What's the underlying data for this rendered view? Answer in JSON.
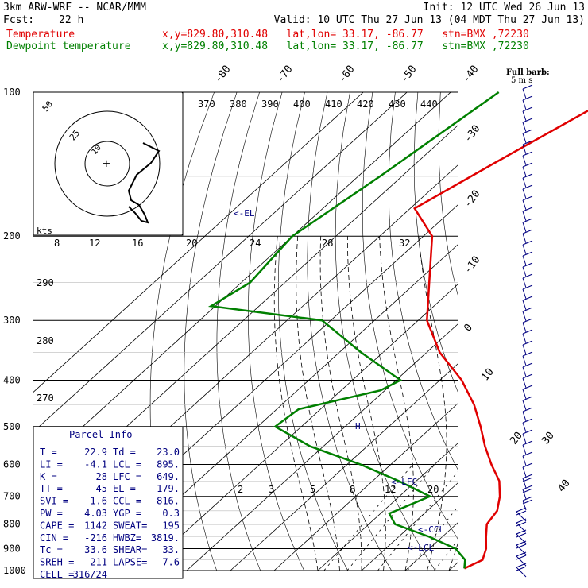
{
  "header": {
    "model": "3km ARW-WRF -- NCAR/MMM",
    "init": "Init: 12 UTC Wed 26 Jun 13",
    "fcst_label": "Fcst:",
    "fcst_value": "22 h",
    "valid": "Valid: 10 UTC Thu 27 Jun 13 (04 MDT Thu 27 Jun 13)",
    "temp_label": "Temperature",
    "dew_label": "Dewpoint temperature",
    "location": "x,y=829.80,310.48   lat,lon= 33.17, -86.77   stn=BMX ,72230"
  },
  "parcel_info": {
    "title": "Parcel Info",
    "rows": [
      [
        "T   =",
        "22.9",
        "Td =",
        "23.0"
      ],
      [
        "LI  =",
        "-4.1",
        "LCL =",
        "895."
      ],
      [
        "K   =",
        "28",
        "LFC =",
        "649."
      ],
      [
        "TT  =",
        "45",
        "EL  =",
        "179."
      ],
      [
        "SVI =",
        "1.6",
        "CCL =",
        "816."
      ],
      [
        "PW  =",
        "4.03",
        "YGP =",
        "0.3"
      ],
      [
        "CAPE =",
        "1142",
        "SWEAT=",
        "195"
      ],
      [
        "CIN  =",
        "-216",
        "HWBZ=",
        "3819."
      ],
      [
        "Tc   =",
        "33.6",
        "SHEAR=",
        "33."
      ],
      [
        "SREH =",
        "211",
        "LAPSE=",
        "7.6"
      ],
      [
        "CELL =",
        "316/24",
        "",
        ""
      ]
    ]
  },
  "hodograph": {
    "units": "kts",
    "rings": [
      "50",
      "25",
      "10"
    ]
  },
  "barb_legend": {
    "line1": "Full barb:",
    "line2": "5 m s"
  },
  "annotations": {
    "el": "<-EL",
    "lfc": "<-LFC",
    "ccl": "<-CCL",
    "lcl": "<-LCL",
    "h": "H"
  },
  "colors": {
    "temperature": "#e00000",
    "dewpoint": "#008000",
    "parcel_text": "#000080",
    "wind": "#000080"
  },
  "chart_data": {
    "type": "line",
    "pressure_levels": [
      100,
      200,
      300,
      400,
      500,
      600,
      700,
      800,
      900,
      1000
    ],
    "isotherm_labels": [
      "-80",
      "-70",
      "-60",
      "-50",
      "-40",
      "-30",
      "-20",
      "-10",
      "0",
      "10",
      "20",
      "30",
      "40"
    ],
    "theta_labels": [
      "370",
      "380",
      "390",
      "400",
      "410",
      "420",
      "430",
      "440"
    ],
    "theta_left_labels": [
      "290",
      "280",
      "270"
    ],
    "mixing_ratio_upper": [
      "8",
      "12",
      "16",
      "20",
      "24",
      "28",
      "32"
    ],
    "mixing_ratio_lower": [
      "2",
      "3",
      "5",
      "8",
      "12",
      "20"
    ],
    "series": [
      {
        "name": "Temperature",
        "points": [
          [
            100,
            -61
          ],
          [
            140,
            -72
          ],
          [
            175,
            -79
          ],
          [
            200,
            -68
          ],
          [
            250,
            -57
          ],
          [
            300,
            -48
          ],
          [
            350,
            -37
          ],
          [
            400,
            -25
          ],
          [
            450,
            -16
          ],
          [
            500,
            -9
          ],
          [
            550,
            -3
          ],
          [
            600,
            3
          ],
          [
            650,
            9
          ],
          [
            700,
            13
          ],
          [
            750,
            16
          ],
          [
            800,
            17
          ],
          [
            850,
            20
          ],
          [
            900,
            23
          ],
          [
            950,
            25
          ],
          [
            990,
            23
          ]
        ]
      },
      {
        "name": "Dewpoint temperature",
        "points": [
          [
            100,
            -89
          ],
          [
            150,
            -95
          ],
          [
            200,
            -100
          ],
          [
            250,
            -98
          ],
          [
            280,
            -101
          ],
          [
            300,
            -72
          ],
          [
            350,
            -55
          ],
          [
            400,
            -39
          ],
          [
            420,
            -41
          ],
          [
            460,
            -55
          ],
          [
            500,
            -56
          ],
          [
            550,
            -43
          ],
          [
            600,
            -27
          ],
          [
            650,
            -14
          ],
          [
            700,
            -3
          ],
          [
            760,
            -8
          ],
          [
            800,
            -4
          ],
          [
            850,
            7
          ],
          [
            900,
            16
          ],
          [
            950,
            21
          ],
          [
            990,
            23
          ]
        ]
      }
    ]
  }
}
